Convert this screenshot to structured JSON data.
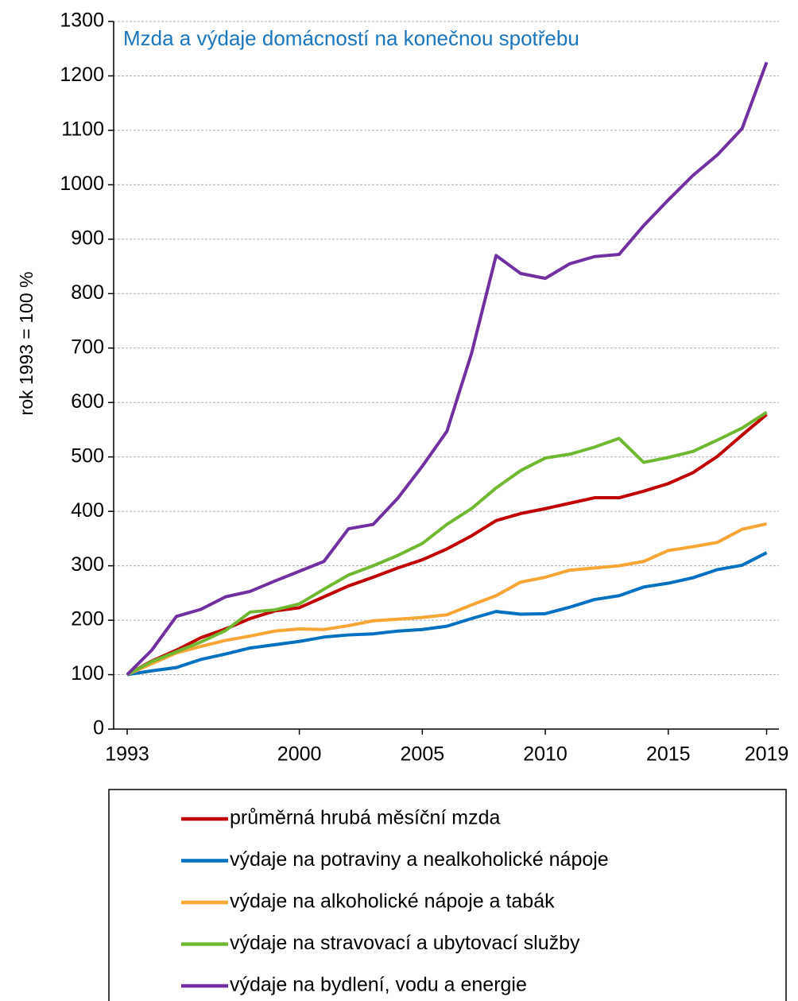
{
  "chart_data": {
    "type": "line",
    "title": "Mzda a výdaje domácností na konečnou spotřebu",
    "y_label": "rok 1993 = 100 %",
    "x": [
      1993,
      1994,
      1995,
      1996,
      1997,
      1998,
      1999,
      2000,
      2001,
      2002,
      2003,
      2004,
      2005,
      2006,
      2007,
      2008,
      2009,
      2010,
      2011,
      2012,
      2013,
      2014,
      2015,
      2016,
      2017,
      2018,
      2019
    ],
    "xlim": [
      1992.45,
      2019.5
    ],
    "xticks": [
      1993,
      2000,
      2005,
      2010,
      2015,
      2019
    ],
    "ylim": [
      0,
      1300
    ],
    "yticks": [
      0,
      100,
      200,
      300,
      400,
      500,
      600,
      700,
      800,
      900,
      1000,
      1100,
      1200,
      1300
    ],
    "grid": true,
    "legend": "bottom",
    "series": [
      {
        "name": "průměrná hrubá měsíční mzda",
        "color": "#c00000",
        "values": [
          100,
          125,
          145,
          168,
          184,
          203,
          217,
          223,
          243,
          263,
          279,
          296,
          311,
          331,
          355,
          383,
          396,
          405,
          415,
          425,
          425,
          437,
          451,
          471,
          501,
          540,
          578
        ]
      },
      {
        "name": "výdaje na potraviny a nealkoholické nápoje",
        "color": "#0070c0",
        "values": [
          100,
          107,
          113,
          128,
          138,
          149,
          155,
          161,
          169,
          173,
          175,
          180,
          183,
          189,
          203,
          216,
          211,
          212,
          224,
          238,
          245,
          261,
          268,
          278,
          293,
          301,
          324
        ]
      },
      {
        "name": "výdaje na alkoholické nápoje a tabák",
        "color": "#f7a535",
        "values": [
          100,
          120,
          140,
          152,
          163,
          171,
          180,
          184,
          183,
          190,
          199,
          202,
          205,
          210,
          228,
          245,
          270,
          279,
          292,
          296,
          300,
          308,
          328,
          335,
          343,
          367,
          377
        ]
      },
      {
        "name": "výdaje na stravovací a ubytovací služby",
        "color": "#70b832",
        "values": [
          100,
          124,
          142,
          160,
          181,
          215,
          219,
          230,
          257,
          283,
          300,
          319,
          341,
          376,
          405,
          443,
          475,
          498,
          505,
          518,
          534,
          490,
          499,
          510,
          531,
          553,
          582
        ]
      },
      {
        "name": "výdaje na bydlení, vodu a energie",
        "color": "#7030a0",
        "values": [
          100,
          145,
          207,
          220,
          243,
          253,
          272,
          290,
          308,
          368,
          376,
          424,
          483,
          547,
          690,
          870,
          837,
          828,
          855,
          868,
          872,
          925,
          972,
          1017,
          1055,
          1103,
          1225
        ]
      }
    ]
  }
}
